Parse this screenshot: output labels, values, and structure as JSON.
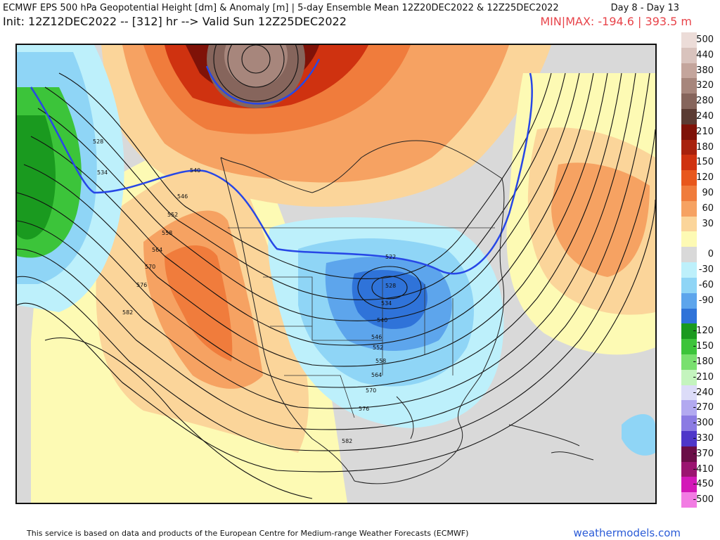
{
  "header": {
    "title": "ECMWF EPS 500 hPa Geopotential Height [dm] & Anomaly [m] | 5-day Ensemble Mean 12Z20DEC2022 & 12Z25DEC2022",
    "day_range": "Day 8 - Day 13",
    "init_line": "Init: 12Z12DEC2022 -- [312] hr --> Valid Sun 12Z25DEC2022",
    "minmax": "MIN|MAX: -194.6 | 393.5 m"
  },
  "map": {
    "contour_labels": [
      "528",
      "534",
      "540",
      "546",
      "552",
      "558",
      "564",
      "570",
      "576",
      "582",
      "522",
      "528",
      "534",
      "540",
      "546",
      "552",
      "558",
      "564",
      "570",
      "576",
      "582"
    ]
  },
  "colorbar": {
    "entries": [
      {
        "label": "500",
        "color": "#ecdcd8"
      },
      {
        "label": "440",
        "color": "#d9c3bd"
      },
      {
        "label": "380",
        "color": "#c4a59c"
      },
      {
        "label": "320",
        "color": "#a7867c"
      },
      {
        "label": "280",
        "color": "#86655c"
      },
      {
        "label": "240",
        "color": "#5b3b33"
      },
      {
        "label": "210",
        "color": "#7f1208"
      },
      {
        "label": "180",
        "color": "#a8210d"
      },
      {
        "label": "150",
        "color": "#cf3210"
      },
      {
        "label": "120",
        "color": "#e8571c"
      },
      {
        "label": "90",
        "color": "#f07c3c"
      },
      {
        "label": "60",
        "color": "#f6a262"
      },
      {
        "label": "30",
        "color": "#fbd59a"
      },
      {
        "label": "",
        "color": "#fdfab4"
      },
      {
        "label": "0",
        "color": "#d9d9d9"
      },
      {
        "label": "-30",
        "color": "#bdf0fb"
      },
      {
        "label": "-60",
        "color": "#8fd5f6"
      },
      {
        "label": "-90",
        "color": "#5da5ec"
      },
      {
        "label": "",
        "color": "#2f73d9"
      },
      {
        "label": "-120",
        "color": "#1a9a1f"
      },
      {
        "label": "-150",
        "color": "#3cc43a"
      },
      {
        "label": "-180",
        "color": "#79e06f"
      },
      {
        "label": "-210",
        "color": "#c4f4be"
      },
      {
        "label": "-240",
        "color": "#dcdcf8"
      },
      {
        "label": "-270",
        "color": "#b2a9f0"
      },
      {
        "label": "-300",
        "color": "#8b7be3"
      },
      {
        "label": "-330",
        "color": "#4e37c9"
      },
      {
        "label": "-370",
        "color": "#6b0e47"
      },
      {
        "label": "-410",
        "color": "#9b1470"
      },
      {
        "label": "-450",
        "color": "#d318b8"
      },
      {
        "label": "-500",
        "color": "#f27ce3"
      }
    ]
  },
  "footer": {
    "credit": "This service is based on data and products of the European Centre for Medium-range Weather Forecasts (ECMWF)",
    "brand": "weathermodels.com"
  }
}
